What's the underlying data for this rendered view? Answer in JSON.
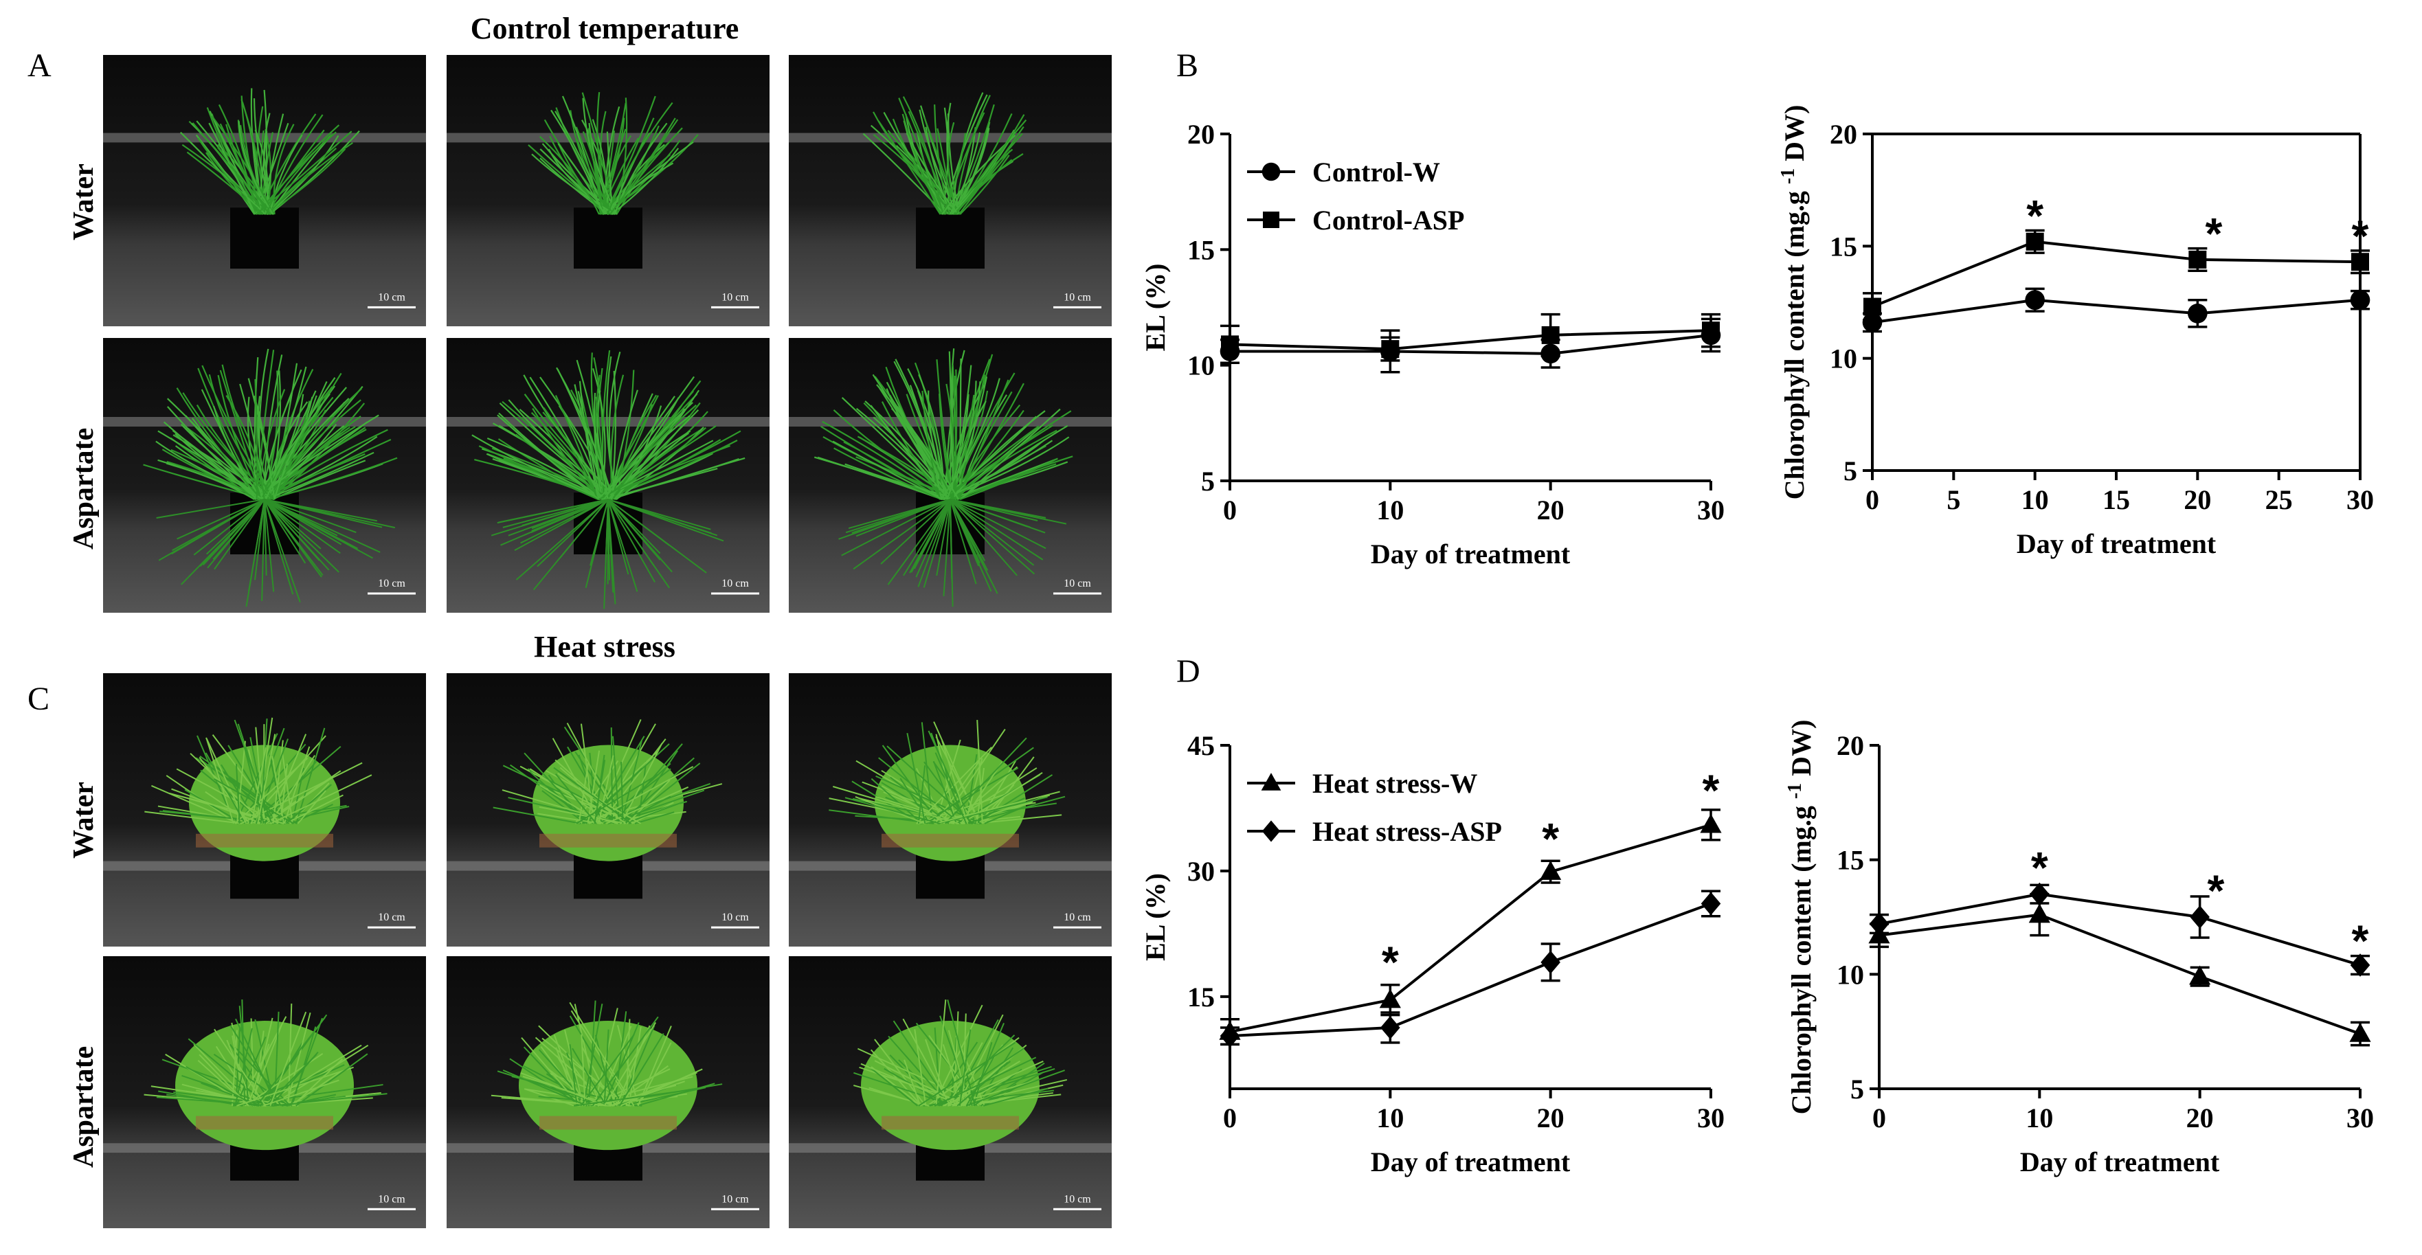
{
  "panels": {
    "A": "A",
    "B": "B",
    "C": "C",
    "D": "D"
  },
  "sections": {
    "control_title": "Control temperature",
    "heat_title": "Heat stress"
  },
  "row_labels": {
    "control_water": "Water",
    "control_aspartate": "Aspartate",
    "heat_water": "Water",
    "heat_aspartate": "Aspartate"
  },
  "scale_bar": "10 cm",
  "colors": {
    "plant_control": "#2f9a2a",
    "plant_heat": "#6fbf3a",
    "line": "#000000"
  },
  "chart_data": [
    {
      "id": "B-EL",
      "type": "line",
      "title": "",
      "xlabel": "Day of treatment",
      "ylabel": "EL (%)",
      "xlim": [
        0,
        30
      ],
      "ylim": [
        5,
        20
      ],
      "xticks": [
        0,
        10,
        20,
        30
      ],
      "yticks": [
        5,
        10,
        15,
        20
      ],
      "x": [
        0,
        10,
        20,
        30
      ],
      "legend": "top-left",
      "series": [
        {
          "name": "Control-W",
          "marker": "circle",
          "values": [
            10.6,
            10.6,
            10.5,
            11.3
          ],
          "err": [
            0.5,
            0.9,
            0.6,
            0.7
          ]
        },
        {
          "name": "Control-ASP",
          "marker": "square",
          "values": [
            10.9,
            10.7,
            11.3,
            11.5
          ],
          "err": [
            0.8,
            0.5,
            0.9,
            0.7
          ]
        }
      ],
      "significance": []
    },
    {
      "id": "B-Chl",
      "type": "line",
      "title": "",
      "xlabel": "Day of treatment",
      "ylabel": "Chlorophyll content (mg.g -1 DW)",
      "xlim": [
        0,
        30
      ],
      "ylim": [
        5,
        20
      ],
      "xticks": [
        0,
        5,
        10,
        15,
        20,
        25,
        30
      ],
      "yticks": [
        5,
        10,
        15,
        20
      ],
      "x": [
        0,
        10,
        20,
        30
      ],
      "legend": "none",
      "series": [
        {
          "name": "Control-W",
          "marker": "circle",
          "values": [
            11.6,
            12.6,
            12.0,
            12.6
          ],
          "err": [
            0.4,
            0.5,
            0.6,
            0.4
          ]
        },
        {
          "name": "Control-ASP",
          "marker": "square",
          "values": [
            12.3,
            15.2,
            14.4,
            14.3
          ],
          "err": [
            0.6,
            0.5,
            0.5,
            0.5
          ]
        }
      ],
      "significance": [
        {
          "x": 10,
          "y": 16.6,
          "label": "*"
        },
        {
          "x": 21,
          "y": 15.8,
          "label": "*"
        },
        {
          "x": 30,
          "y": 15.7,
          "label": "*"
        }
      ]
    },
    {
      "id": "D-EL",
      "type": "line",
      "title": "",
      "xlabel": "Day of treatment",
      "ylabel": "EL (%)",
      "xlim": [
        0,
        30
      ],
      "ylim": [
        4,
        45
      ],
      "xticks": [
        0,
        10,
        20,
        30
      ],
      "yticks": [
        15,
        30,
        45
      ],
      "x": [
        0,
        10,
        20,
        30
      ],
      "legend": "top-left",
      "series": [
        {
          "name": "Heat stress-W",
          "marker": "triangle",
          "values": [
            10.8,
            14.6,
            29.9,
            35.5
          ],
          "err": [
            1.5,
            1.8,
            1.3,
            1.8
          ]
        },
        {
          "name": "Heat stress-ASP",
          "marker": "diamond",
          "values": [
            10.3,
            11.3,
            19.1,
            26.1
          ],
          "err": [
            1.0,
            1.8,
            2.2,
            1.5
          ]
        }
      ],
      "significance": [
        {
          "x": 10,
          "y": 19.8,
          "label": "*"
        },
        {
          "x": 20,
          "y": 34.5,
          "label": "*"
        },
        {
          "x": 30,
          "y": 40.3,
          "label": "*"
        }
      ]
    },
    {
      "id": "D-Chl",
      "type": "line",
      "title": "",
      "xlabel": "Day of treatment",
      "ylabel": "Chlorophyll content (mg.g -1 DW)",
      "xlim": [
        0,
        30
      ],
      "ylim": [
        5,
        20
      ],
      "xticks": [
        0,
        10,
        20,
        30
      ],
      "yticks": [
        5,
        10,
        15,
        20
      ],
      "x": [
        0,
        10,
        20,
        30
      ],
      "legend": "none",
      "series": [
        {
          "name": "Heat stress-W",
          "marker": "triangle",
          "values": [
            11.7,
            12.6,
            9.9,
            7.4
          ],
          "err": [
            0.5,
            0.9,
            0.4,
            0.5
          ]
        },
        {
          "name": "Heat stress-ASP",
          "marker": "diamond",
          "values": [
            12.2,
            13.5,
            12.5,
            10.4
          ],
          "err": [
            0.4,
            0.4,
            0.9,
            0.4
          ]
        }
      ],
      "significance": [
        {
          "x": 10,
          "y": 14.9,
          "label": "*"
        },
        {
          "x": 21,
          "y": 13.9,
          "label": "*"
        },
        {
          "x": 30,
          "y": 11.7,
          "label": "*"
        }
      ]
    }
  ]
}
